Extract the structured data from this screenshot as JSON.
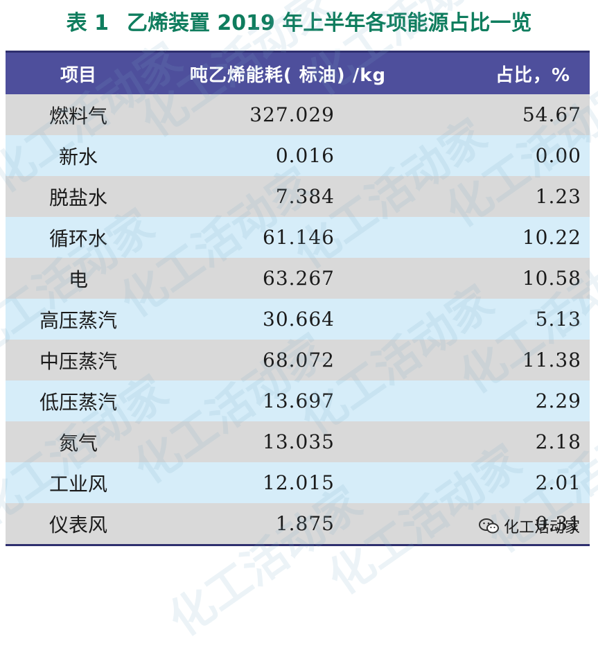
{
  "title": {
    "label": "表 1",
    "text": "乙烯装置 2019 年上半年各项能源占比一览"
  },
  "table": {
    "headers": [
      "项目",
      "吨乙烯能耗( 标油) /kg",
      "占比，%"
    ],
    "rows": [
      {
        "item": "燃料气",
        "energy": "327.029",
        "ratio": "54.67"
      },
      {
        "item": "新水",
        "energy": "0.016",
        "ratio": "0.00"
      },
      {
        "item": "脱盐水",
        "energy": "7.384",
        "ratio": "1.23"
      },
      {
        "item": "循环水",
        "energy": "61.146",
        "ratio": "10.22"
      },
      {
        "item": "电",
        "energy": "63.267",
        "ratio": "10.58"
      },
      {
        "item": "高压蒸汽",
        "energy": "30.664",
        "ratio": "5.13"
      },
      {
        "item": "中压蒸汽",
        "energy": "68.072",
        "ratio": "11.38"
      },
      {
        "item": "低压蒸汽",
        "energy": "13.697",
        "ratio": "2.29"
      },
      {
        "item": "氮气",
        "energy": "13.035",
        "ratio": "2.18"
      },
      {
        "item": "工业风",
        "energy": "12.015",
        "ratio": "2.01"
      },
      {
        "item": "仪表风",
        "energy": "1.875",
        "ratio": "0.31"
      }
    ]
  },
  "watermark": {
    "text": "化工活动家"
  },
  "brand": {
    "name": "化工活动家",
    "icon": "wechat-icon"
  }
}
